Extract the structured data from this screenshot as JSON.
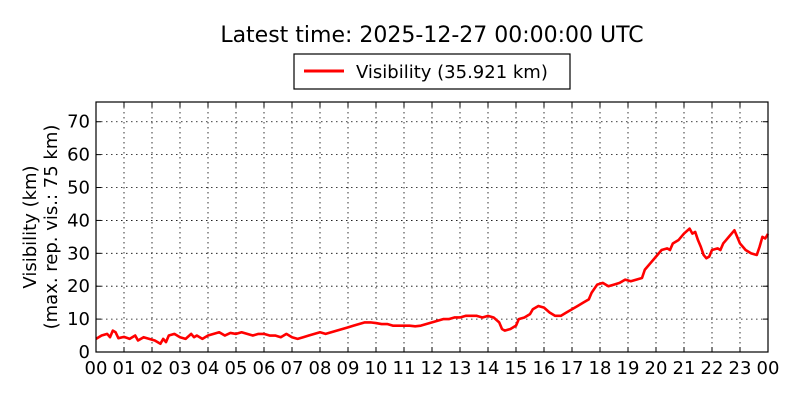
{
  "chart_data": {
    "type": "line",
    "title": "Latest time: 2025-12-27 00:00:00 UTC",
    "xlabel": "",
    "ylabel": "Visibility (km)",
    "ylabel2": "(max. rep. vis.: 75 km)",
    "xlim": [
      0,
      24
    ],
    "ylim": [
      0,
      76
    ],
    "yticks": [
      0,
      10,
      20,
      30,
      40,
      50,
      60,
      70
    ],
    "xticks": [
      "00",
      "01",
      "02",
      "03",
      "04",
      "05",
      "06",
      "07",
      "08",
      "09",
      "10",
      "11",
      "12",
      "13",
      "14",
      "15",
      "16",
      "17",
      "18",
      "19",
      "20",
      "21",
      "22",
      "23",
      "00"
    ],
    "grid": true,
    "legend_position": "top-center",
    "colors": {
      "line": "#ff0000"
    },
    "series": [
      {
        "name": "Visibility (35.921 km)",
        "points": [
          [
            0.0,
            4.0
          ],
          [
            0.2,
            5.0
          ],
          [
            0.4,
            5.5
          ],
          [
            0.5,
            4.5
          ],
          [
            0.6,
            6.5
          ],
          [
            0.7,
            6.0
          ],
          [
            0.8,
            4.2
          ],
          [
            1.0,
            4.6
          ],
          [
            1.2,
            4.0
          ],
          [
            1.4,
            5.0
          ],
          [
            1.5,
            3.5
          ],
          [
            1.7,
            4.5
          ],
          [
            1.9,
            4.0
          ],
          [
            2.1,
            3.5
          ],
          [
            2.3,
            2.5
          ],
          [
            2.4,
            4.0
          ],
          [
            2.5,
            3.0
          ],
          [
            2.6,
            5.0
          ],
          [
            2.8,
            5.5
          ],
          [
            3.0,
            4.5
          ],
          [
            3.2,
            4.0
          ],
          [
            3.4,
            5.5
          ],
          [
            3.5,
            4.5
          ],
          [
            3.6,
            5.0
          ],
          [
            3.8,
            4.0
          ],
          [
            4.0,
            5.0
          ],
          [
            4.2,
            5.5
          ],
          [
            4.4,
            6.0
          ],
          [
            4.6,
            5.0
          ],
          [
            4.8,
            5.8
          ],
          [
            5.0,
            5.5
          ],
          [
            5.2,
            6.0
          ],
          [
            5.4,
            5.5
          ],
          [
            5.6,
            5.0
          ],
          [
            5.8,
            5.5
          ],
          [
            6.0,
            5.5
          ],
          [
            6.2,
            5.0
          ],
          [
            6.4,
            5.0
          ],
          [
            6.6,
            4.5
          ],
          [
            6.8,
            5.5
          ],
          [
            7.0,
            4.5
          ],
          [
            7.2,
            4.0
          ],
          [
            7.4,
            4.5
          ],
          [
            7.6,
            5.0
          ],
          [
            7.8,
            5.5
          ],
          [
            8.0,
            6.0
          ],
          [
            8.2,
            5.5
          ],
          [
            8.4,
            6.0
          ],
          [
            8.6,
            6.5
          ],
          [
            8.8,
            7.0
          ],
          [
            9.0,
            7.5
          ],
          [
            9.2,
            8.0
          ],
          [
            9.4,
            8.5
          ],
          [
            9.6,
            9.0
          ],
          [
            9.8,
            9.0
          ],
          [
            10.0,
            8.8
          ],
          [
            10.2,
            8.5
          ],
          [
            10.4,
            8.5
          ],
          [
            10.6,
            8.0
          ],
          [
            10.8,
            8.0
          ],
          [
            11.0,
            8.0
          ],
          [
            11.2,
            8.0
          ],
          [
            11.4,
            7.8
          ],
          [
            11.6,
            8.0
          ],
          [
            11.8,
            8.5
          ],
          [
            12.0,
            9.0
          ],
          [
            12.2,
            9.5
          ],
          [
            12.4,
            10.0
          ],
          [
            12.6,
            10.0
          ],
          [
            12.8,
            10.5
          ],
          [
            13.0,
            10.5
          ],
          [
            13.2,
            11.0
          ],
          [
            13.4,
            11.0
          ],
          [
            13.6,
            11.0
          ],
          [
            13.8,
            10.5
          ],
          [
            14.0,
            11.0
          ],
          [
            14.2,
            10.5
          ],
          [
            14.4,
            9.0
          ],
          [
            14.5,
            7.0
          ],
          [
            14.6,
            6.5
          ],
          [
            14.8,
            7.0
          ],
          [
            15.0,
            8.0
          ],
          [
            15.1,
            10.0
          ],
          [
            15.3,
            10.5
          ],
          [
            15.5,
            11.5
          ],
          [
            15.6,
            13.0
          ],
          [
            15.8,
            14.0
          ],
          [
            16.0,
            13.5
          ],
          [
            16.2,
            12.0
          ],
          [
            16.4,
            11.0
          ],
          [
            16.6,
            11.0
          ],
          [
            16.8,
            12.0
          ],
          [
            17.0,
            13.0
          ],
          [
            17.2,
            14.0
          ],
          [
            17.4,
            15.0
          ],
          [
            17.6,
            16.0
          ],
          [
            17.7,
            18.0
          ],
          [
            17.9,
            20.5
          ],
          [
            18.1,
            21.0
          ],
          [
            18.3,
            20.0
          ],
          [
            18.5,
            20.5
          ],
          [
            18.7,
            21.0
          ],
          [
            18.9,
            22.0
          ],
          [
            19.1,
            21.5
          ],
          [
            19.3,
            22.0
          ],
          [
            19.5,
            22.5
          ],
          [
            19.6,
            25.0
          ],
          [
            19.8,
            27.0
          ],
          [
            20.0,
            29.0
          ],
          [
            20.2,
            31.0
          ],
          [
            20.4,
            31.5
          ],
          [
            20.5,
            31.0
          ],
          [
            20.6,
            33.0
          ],
          [
            20.8,
            34.0
          ],
          [
            21.0,
            36.0
          ],
          [
            21.2,
            37.5
          ],
          [
            21.3,
            36.0
          ],
          [
            21.4,
            36.5
          ],
          [
            21.5,
            34.0
          ],
          [
            21.6,
            32.0
          ],
          [
            21.7,
            29.5
          ],
          [
            21.8,
            28.5
          ],
          [
            21.9,
            29.0
          ],
          [
            22.0,
            31.0
          ],
          [
            22.2,
            31.5
          ],
          [
            22.3,
            31.0
          ],
          [
            22.4,
            33.0
          ],
          [
            22.5,
            34.0
          ],
          [
            22.6,
            35.0
          ],
          [
            22.8,
            37.0
          ],
          [
            22.9,
            35.0
          ],
          [
            23.0,
            33.0
          ],
          [
            23.2,
            31.0
          ],
          [
            23.4,
            30.0
          ],
          [
            23.6,
            29.5
          ],
          [
            23.7,
            32.0
          ],
          [
            23.8,
            35.0
          ],
          [
            23.9,
            34.5
          ],
          [
            24.0,
            35.9
          ]
        ]
      }
    ]
  }
}
